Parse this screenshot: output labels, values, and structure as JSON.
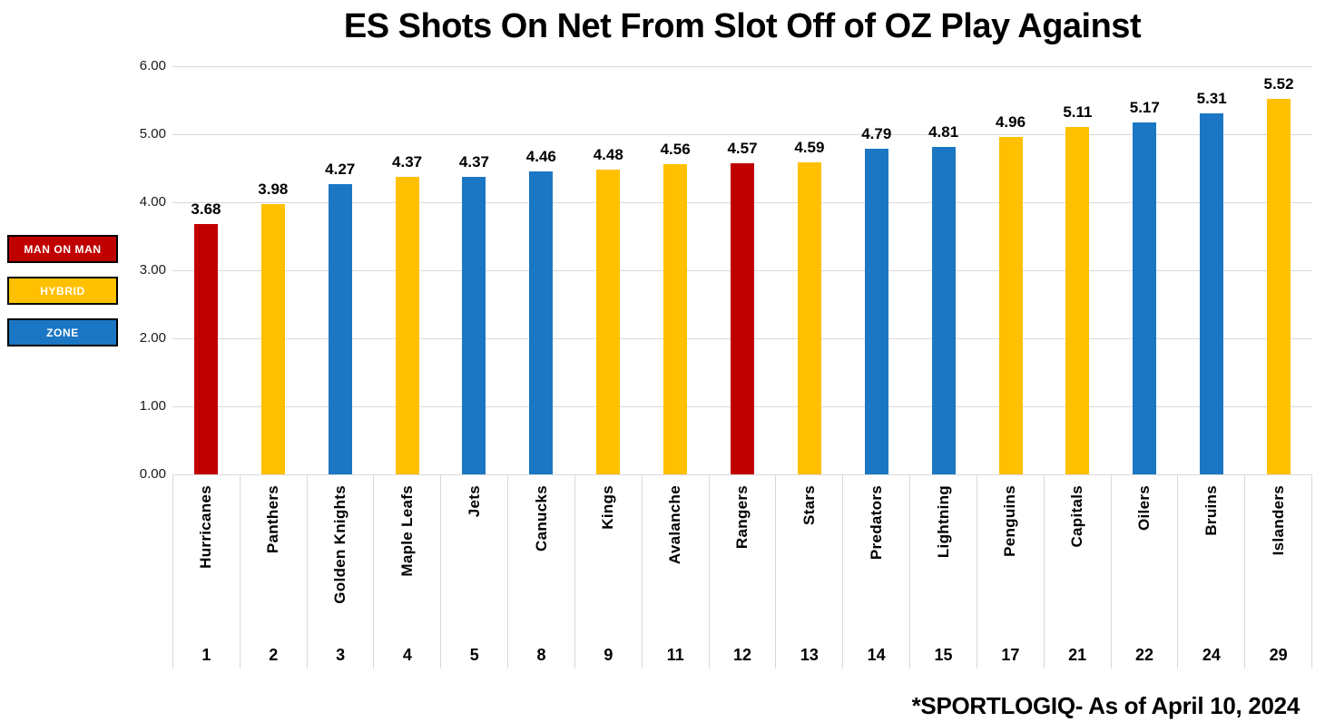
{
  "title": "ES Shots On Net From Slot Off of OZ Play Against",
  "footer": "*SPORTLOGIQ- As of April 10, 2024",
  "legend": [
    {
      "label": "MAN ON MAN",
      "color": "#C00000"
    },
    {
      "label": "HYBRID",
      "color": "#FFC000"
    },
    {
      "label": "ZONE",
      "color": "#1B77C4"
    }
  ],
  "chart_data": {
    "type": "bar",
    "title": "ES Shots On Net From Slot Off of OZ Play Against",
    "xlabel": "",
    "ylabel": "",
    "ylim": [
      0,
      6
    ],
    "ytick_labels": [
      "0.00",
      "1.00",
      "2.00",
      "3.00",
      "4.00",
      "5.00",
      "6.00"
    ],
    "grid": true,
    "legend_position": "left",
    "source_note": "*SPORTLOGIQ- As of April 10, 2024",
    "categories": [
      "Hurricanes",
      "Panthers",
      "Golden Knights",
      "Maple Leafs",
      "Jets",
      "Canucks",
      "Kings",
      "Avalanche",
      "Rangers",
      "Stars",
      "Predators",
      "Lightning",
      "Penguins",
      "Capitals",
      "Oilers",
      "Bruins",
      "Islanders"
    ],
    "bars": [
      {
        "team": "Hurricanes",
        "rank": "1",
        "value": 3.68,
        "coverage": "MAN ON MAN"
      },
      {
        "team": "Panthers",
        "rank": "2",
        "value": 3.98,
        "coverage": "HYBRID"
      },
      {
        "team": "Golden Knights",
        "rank": "3",
        "value": 4.27,
        "coverage": "ZONE"
      },
      {
        "team": "Maple Leafs",
        "rank": "4",
        "value": 4.37,
        "coverage": "HYBRID"
      },
      {
        "team": "Jets",
        "rank": "5",
        "value": 4.37,
        "coverage": "ZONE"
      },
      {
        "team": "Canucks",
        "rank": "8",
        "value": 4.46,
        "coverage": "ZONE"
      },
      {
        "team": "Kings",
        "rank": "9",
        "value": 4.48,
        "coverage": "HYBRID"
      },
      {
        "team": "Avalanche",
        "rank": "11",
        "value": 4.56,
        "coverage": "HYBRID"
      },
      {
        "team": "Rangers",
        "rank": "12",
        "value": 4.57,
        "coverage": "MAN ON MAN"
      },
      {
        "team": "Stars",
        "rank": "13",
        "value": 4.59,
        "coverage": "HYBRID"
      },
      {
        "team": "Predators",
        "rank": "14",
        "value": 4.79,
        "coverage": "ZONE"
      },
      {
        "team": "Lightning",
        "rank": "15",
        "value": 4.81,
        "coverage": "ZONE"
      },
      {
        "team": "Penguins",
        "rank": "17",
        "value": 4.96,
        "coverage": "HYBRID"
      },
      {
        "team": "Capitals",
        "rank": "21",
        "value": 5.11,
        "coverage": "HYBRID"
      },
      {
        "team": "Oilers",
        "rank": "22",
        "value": 5.17,
        "coverage": "ZONE"
      },
      {
        "team": "Bruins",
        "rank": "24",
        "value": 5.31,
        "coverage": "ZONE"
      },
      {
        "team": "Islanders",
        "rank": "29",
        "value": 5.52,
        "coverage": "HYBRID"
      }
    ]
  }
}
